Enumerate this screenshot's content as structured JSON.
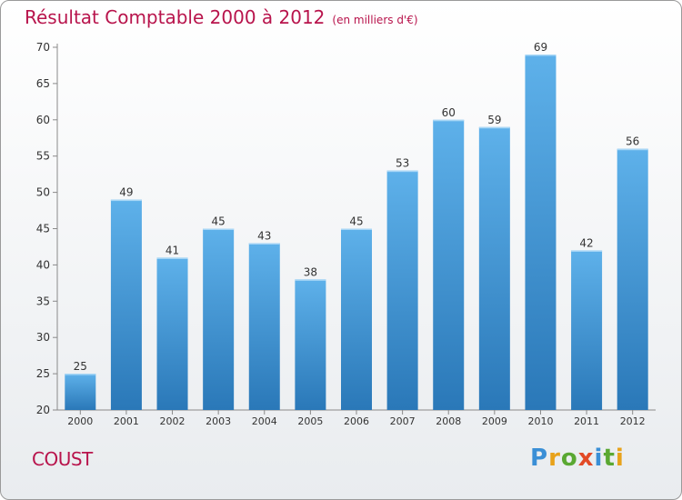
{
  "header": {
    "title": "Résultat Comptable 2000 à 2012",
    "subtitle": "(en milliers d'€)"
  },
  "footer": {
    "commune": "COUST",
    "logo": "Proxiti"
  },
  "colors": {
    "bar_top": "#5eb1ea",
    "bar_bottom": "#2a78b8",
    "title": "#b8144c"
  },
  "chart_data": {
    "type": "bar",
    "title": "Résultat Comptable 2000 à 2012",
    "subtitle": "(en milliers d'€)",
    "xlabel": "",
    "ylabel": "",
    "categories": [
      "2000",
      "2001",
      "2002",
      "2003",
      "2004",
      "2005",
      "2006",
      "2007",
      "2008",
      "2009",
      "2010",
      "2011",
      "2012"
    ],
    "values": [
      25,
      49,
      41,
      45,
      43,
      38,
      45,
      53,
      60,
      59,
      69,
      42,
      56
    ],
    "ylim": [
      20,
      70
    ],
    "yticks": [
      20,
      25,
      30,
      35,
      40,
      45,
      50,
      55,
      60,
      65,
      70
    ],
    "grid": false,
    "data_labels": true
  }
}
